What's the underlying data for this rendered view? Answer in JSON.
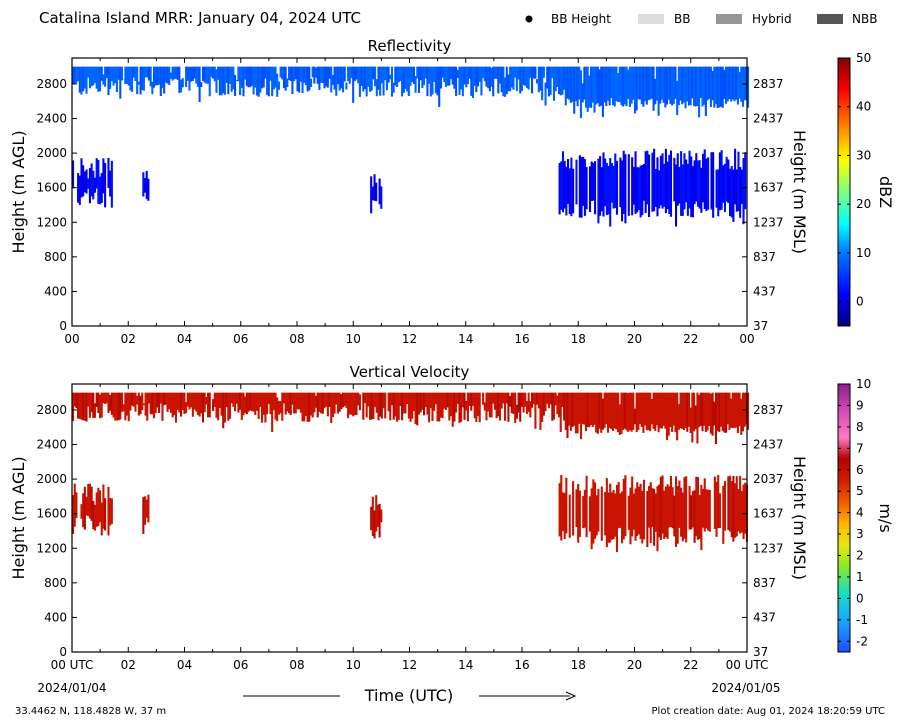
{
  "header": {
    "title": "Catalina Island MRR:  January 04, 2024 UTC",
    "legend": [
      {
        "label": "BB Height",
        "marker": "dot",
        "color": "#000000"
      },
      {
        "label": "BB",
        "marker": "box",
        "color": "#dcdcdc"
      },
      {
        "label": "Hybrid",
        "marker": "box",
        "color": "#969696"
      },
      {
        "label": "NBB",
        "marker": "box",
        "color": "#555555"
      }
    ]
  },
  "footer": {
    "x_axis_label": "Time (UTC)",
    "start_date": "2024/01/04",
    "end_date": "2024/01/05",
    "location": "33.4462 N, 118.4828 W, 37 m",
    "creation": "Plot creation date: Aug 01, 2024 18:20:59 UTC"
  },
  "chart_data": [
    {
      "type": "heatmap",
      "title": "Reflectivity",
      "ylabel": "Height (m AGL)",
      "y2label": "Height (m MSL)",
      "xlim": [
        0,
        24
      ],
      "ylim": [
        0,
        3100
      ],
      "x_tick_labels": [
        "00",
        "02",
        "04",
        "06",
        "08",
        "10",
        "12",
        "14",
        "16",
        "18",
        "20",
        "22",
        "00"
      ],
      "y_ticks": [
        0,
        400,
        800,
        1200,
        1600,
        2000,
        2400,
        2800
      ],
      "y2_tick_labels": [
        "37",
        "437",
        "837",
        "1237",
        "1637",
        "2037",
        "2437",
        "2837"
      ],
      "colorbar": {
        "label": "dBZ",
        "range": [
          -5,
          50
        ],
        "tick_labels": [
          "0",
          "10",
          "20",
          "30",
          "40",
          "50"
        ],
        "tick_values": [
          0,
          10,
          20,
          30,
          40,
          50
        ]
      },
      "echo_regions": [
        {
          "name": "upper-layer",
          "x_range": [
            0,
            24
          ],
          "top": 3000,
          "base_by_segment": [
            {
              "x": [
                0,
                2.5
              ],
              "base": 2700
            },
            {
              "x": [
                2.5,
                5
              ],
              "base": 2750
            },
            {
              "x": [
                5,
                10.5
              ],
              "base": 2750
            },
            {
              "x": [
                10.5,
                17.5
              ],
              "base": 2750
            },
            {
              "x": [
                17.5,
                24
              ],
              "base": 2500
            }
          ],
          "value_dbz": 3
        },
        {
          "name": "lower-cell-1",
          "x_range": [
            0,
            1.4
          ],
          "top": 1950,
          "base": 1400,
          "value_dbz": 0
        },
        {
          "name": "lower-cell-2",
          "x_range": [
            2.5,
            2.7
          ],
          "top": 1850,
          "base": 1450,
          "value_dbz": 0
        },
        {
          "name": "lower-cell-3",
          "x_range": [
            10.6,
            11.0
          ],
          "top": 1850,
          "base": 1300,
          "value_dbz": 0
        },
        {
          "name": "lower-layer",
          "x_range": [
            17.3,
            24
          ],
          "top": 2050,
          "base": 1250,
          "value_dbz": -1
        }
      ]
    },
    {
      "type": "heatmap",
      "title": "Vertical Velocity",
      "ylabel": "Height (m AGL)",
      "y2label": "Height (m MSL)",
      "xlim": [
        0,
        24
      ],
      "ylim": [
        0,
        3100
      ],
      "x_tick_labels": [
        "00 UTC",
        "02",
        "04",
        "06",
        "08",
        "10",
        "12",
        "14",
        "16",
        "18",
        "20",
        "22",
        "00 UTC"
      ],
      "y_ticks": [
        0,
        400,
        800,
        1200,
        1600,
        2000,
        2400,
        2800
      ],
      "y2_tick_labels": [
        "37",
        "437",
        "837",
        "1237",
        "1637",
        "2037",
        "2437",
        "2837"
      ],
      "colorbar": {
        "label": "m/s",
        "range": [
          -2.5,
          10
        ],
        "tick_labels": [
          "-2",
          "-1",
          "0",
          "1",
          "2",
          "3",
          "4",
          "5",
          "6",
          "7",
          "8",
          "9",
          "10"
        ],
        "tick_values": [
          -2,
          -1,
          0,
          1,
          2,
          3,
          4,
          5,
          6,
          7,
          8,
          9,
          10
        ]
      },
      "echo_regions": [
        {
          "name": "upper-layer",
          "x_range": [
            0,
            24
          ],
          "top": 3000,
          "value_ms": 5.5
        },
        {
          "name": "lower-cell-1",
          "x_range": [
            0,
            1.4
          ],
          "top": 1950,
          "base": 1400,
          "value_ms": 5.5
        },
        {
          "name": "lower-cell-2",
          "x_range": [
            2.5,
            2.7
          ],
          "top": 1850,
          "base": 1450,
          "value_ms": 5.5
        },
        {
          "name": "lower-cell-3",
          "x_range": [
            10.6,
            11.0
          ],
          "top": 1850,
          "base": 1300,
          "value_ms": 5.5
        },
        {
          "name": "lower-layer",
          "x_range": [
            17.3,
            24
          ],
          "top": 2050,
          "base": 1250,
          "value_ms": 5.5
        }
      ]
    }
  ]
}
